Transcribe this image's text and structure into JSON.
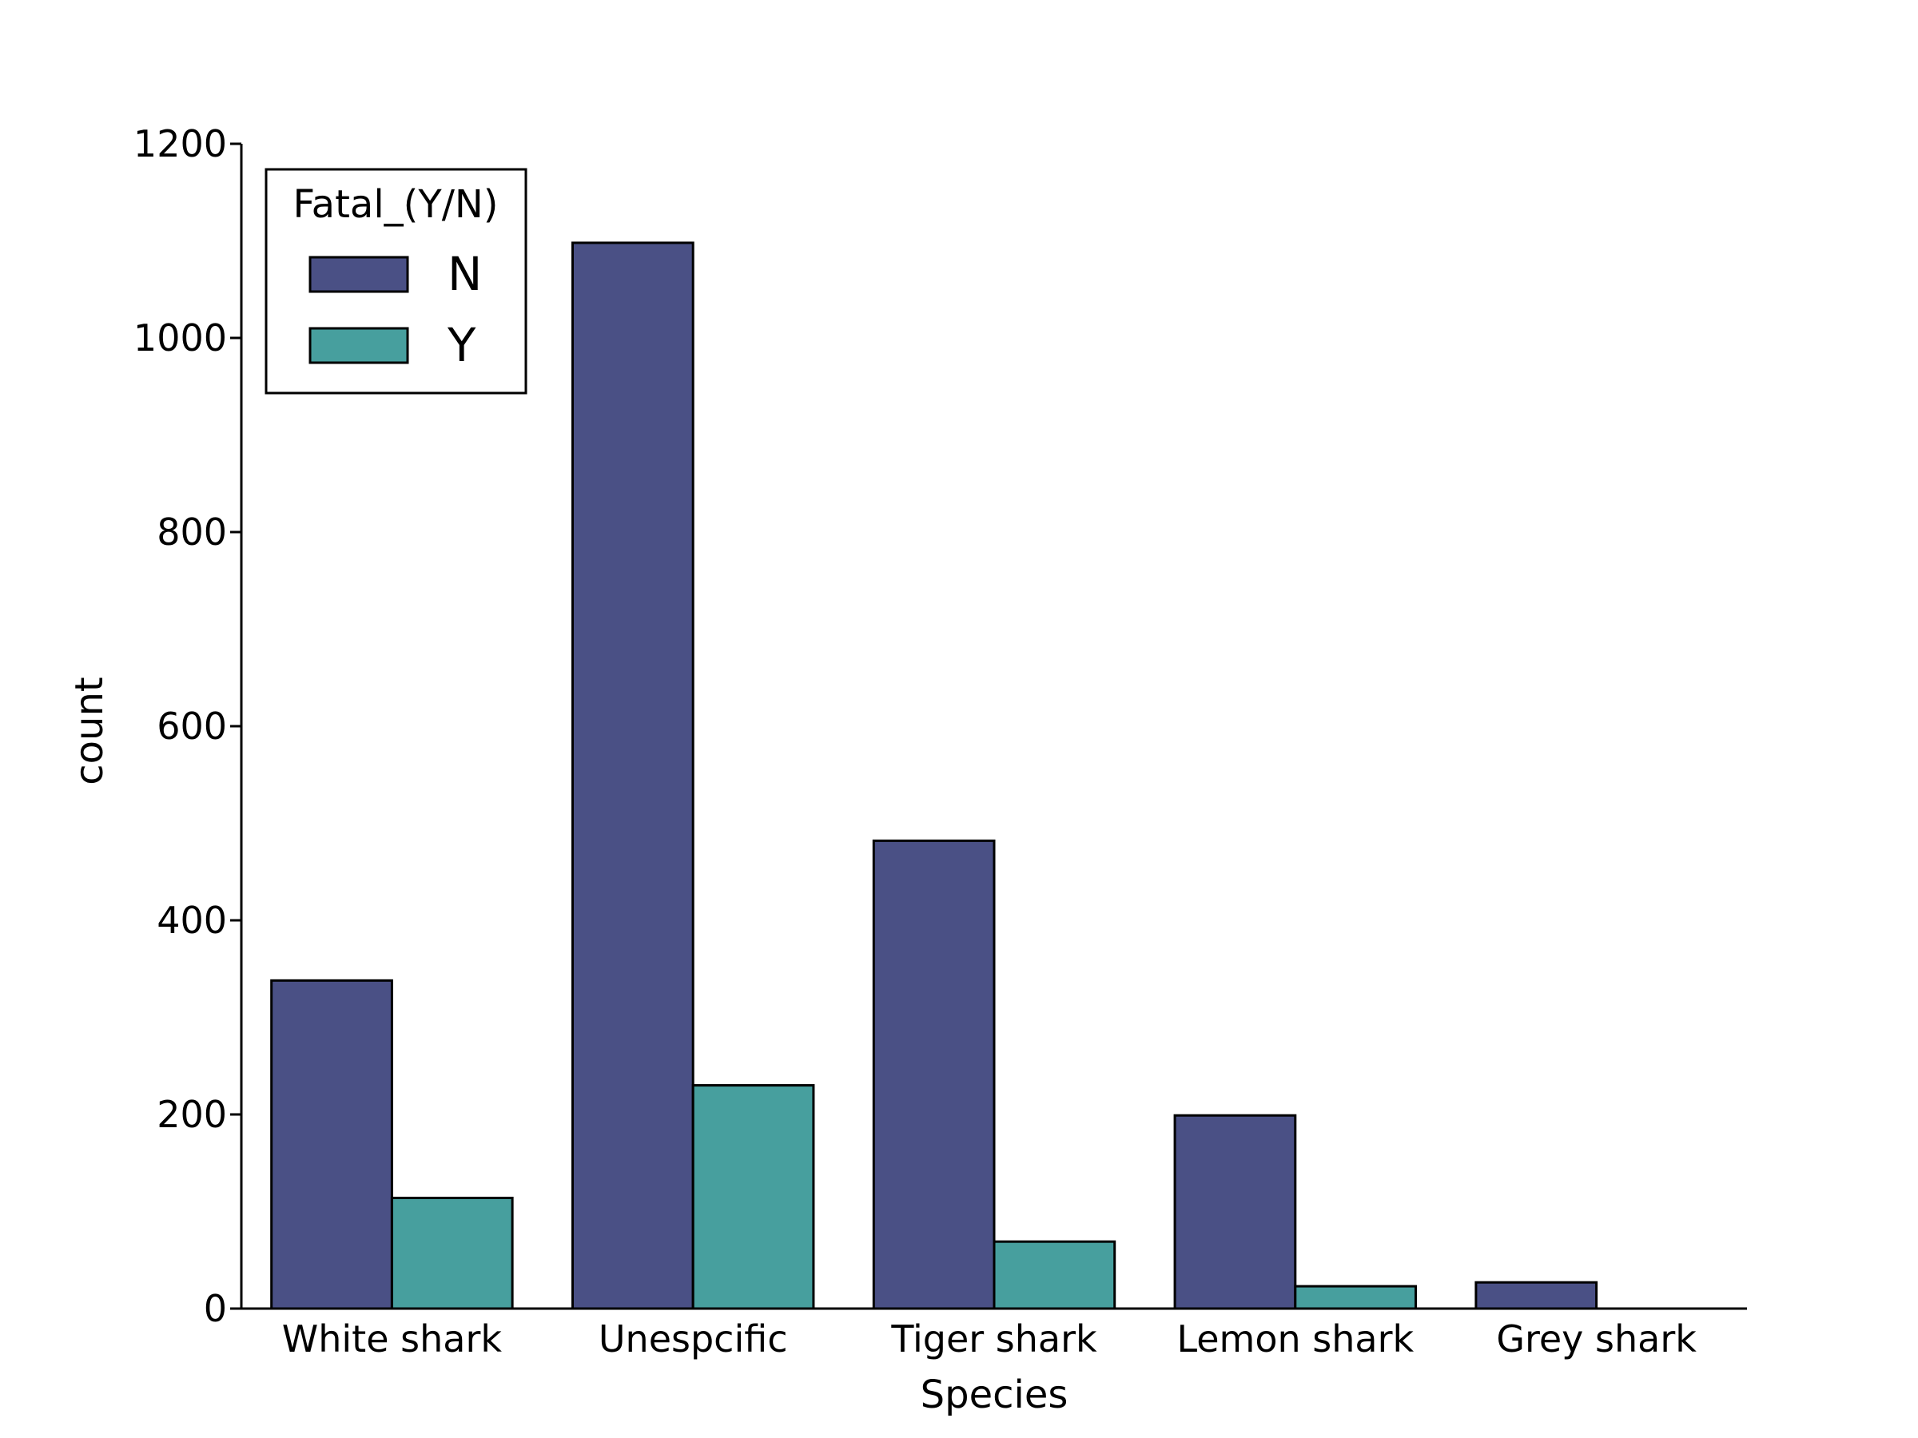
{
  "chart_data": {
    "type": "bar",
    "categories": [
      "White shark",
      "Unespcific",
      "Tiger shark",
      "Lemon shark",
      "Grey shark"
    ],
    "series": [
      {
        "name": "N",
        "values": [
          338,
          1098,
          482,
          199,
          27
        ],
        "color": "#4A5085"
      },
      {
        "name": "Y",
        "values": [
          114,
          230,
          69,
          23,
          0
        ],
        "color": "#479F9E"
      }
    ],
    "xlabel": "Species",
    "ylabel": "count",
    "ylim": [
      0,
      1200
    ],
    "yticks": [
      0,
      200,
      400,
      600,
      800,
      1000,
      1200
    ],
    "legend": {
      "title": "Fatal_(Y/N)",
      "placement": "top-left"
    },
    "grid": false
  }
}
